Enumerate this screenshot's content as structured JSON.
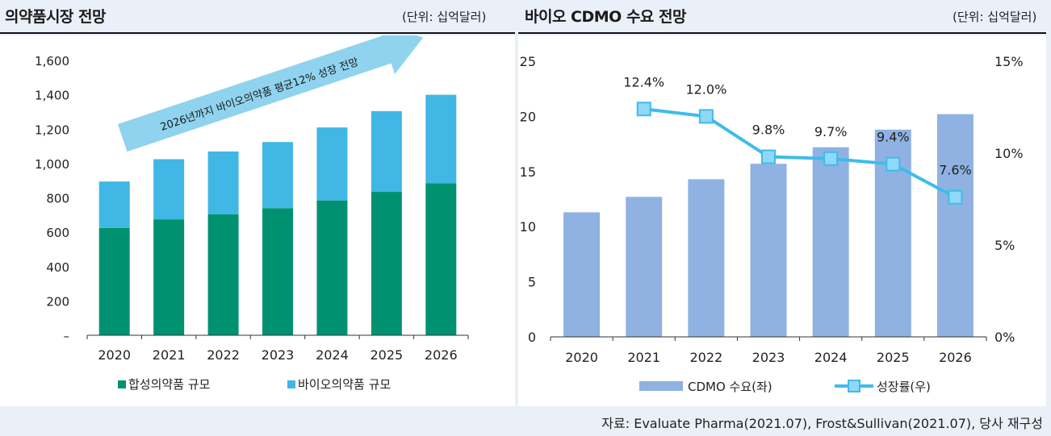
{
  "left_panel": {
    "title": "의약품시장 전망",
    "unit": "(단위: 십억달러)"
  },
  "right_panel": {
    "title": "바이오 CDMO 수요 전망",
    "unit": "(단위: 십억달러)"
  },
  "source": "자료: Evaluate Pharma(2021.07), Frost&Sullivan(2021.07), 당사 재구성",
  "colors": {
    "synthetic": "#009270",
    "bio": "#40b7e4",
    "cdmo": "#8fb2e2",
    "growth": "#3fbbec",
    "arrow": "#8fd3ef"
  },
  "chart_data": [
    {
      "type": "bar",
      "stacked": true,
      "title": "의약품시장 전망",
      "categories": [
        "2020",
        "2021",
        "2022",
        "2023",
        "2024",
        "2025",
        "2026"
      ],
      "series": [
        {
          "name": "합성의약품 규모",
          "values": [
            625,
            675,
            705,
            740,
            785,
            835,
            885
          ]
        },
        {
          "name": "바이오의약품 규모",
          "values": [
            270,
            350,
            365,
            385,
            425,
            470,
            515
          ]
        }
      ],
      "ylim": [
        0,
        1600
      ],
      "yticks": [
        0,
        200,
        400,
        600,
        800,
        1000,
        1200,
        1400,
        1600
      ],
      "ytick_labels": [
        "–",
        "200",
        "400",
        "600",
        "800",
        "1,000",
        "1,200",
        "1,400",
        "1,600"
      ],
      "annotation": "2026년까지 바이오의약품 평균12% 성장 전망",
      "legend": "bottom"
    },
    {
      "type": "bar",
      "title": "바이오 CDMO 수요 전망",
      "categories": [
        "2020",
        "2021",
        "2022",
        "2023",
        "2024",
        "2025",
        "2026"
      ],
      "series": [
        {
          "name": "CDMO 수요(좌)",
          "type": "bar",
          "values": [
            11.3,
            12.7,
            14.3,
            15.7,
            17.2,
            18.8,
            20.2
          ]
        },
        {
          "name": "성장률(우)",
          "type": "line",
          "x": [
            "2021",
            "2022",
            "2023",
            "2024",
            "2025",
            "2026"
          ],
          "values": [
            12.4,
            12.0,
            9.8,
            9.7,
            9.4,
            7.6
          ],
          "labels": [
            "12.4%",
            "12.0%",
            "9.8%",
            "9.7%",
            "9.4%",
            "7.6%"
          ]
        }
      ],
      "ylim": [
        0,
        25
      ],
      "yticks": [
        0,
        5,
        10,
        15,
        20,
        25
      ],
      "y2lim": [
        0,
        15
      ],
      "y2ticks": [
        0,
        5,
        10,
        15
      ],
      "y2tick_labels": [
        "0%",
        "5%",
        "10%",
        "15%"
      ],
      "legend": "bottom"
    }
  ]
}
